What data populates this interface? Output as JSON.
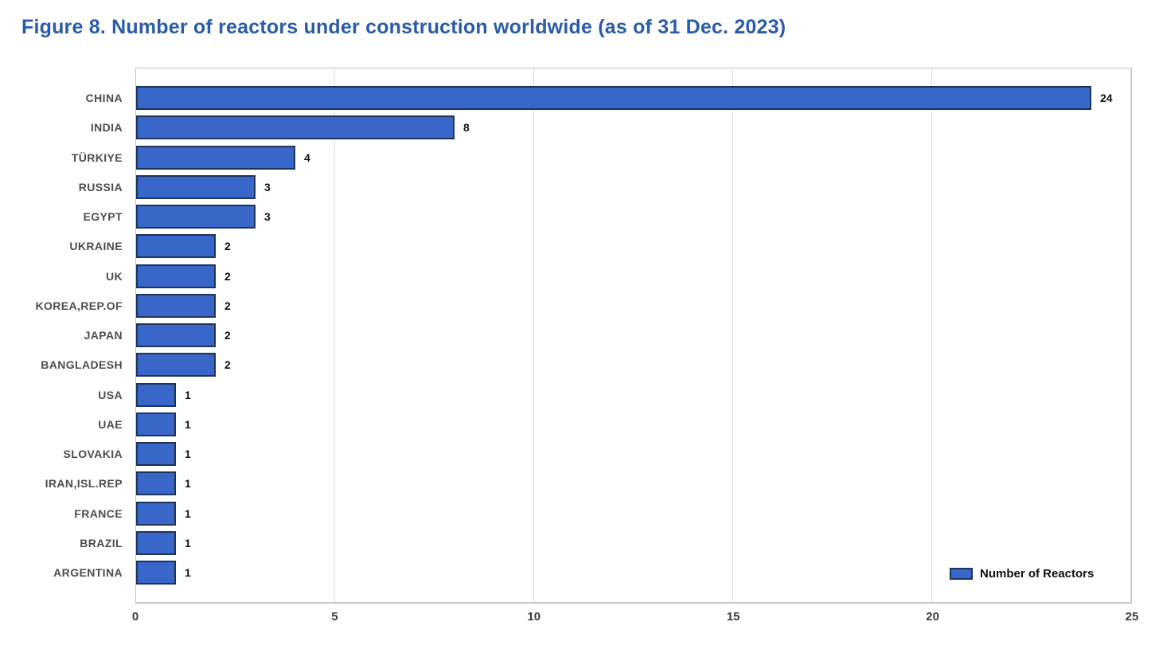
{
  "title": {
    "text": "Figure 8. Number of reactors under construction worldwide (as of 31 Dec. 2023)",
    "color": "#2A5CAA"
  },
  "chart_data": {
    "type": "bar",
    "orientation": "horizontal",
    "title": "Figure 8. Number of reactors under construction worldwide (as of 31 Dec. 2023)",
    "categories": [
      "CHINA",
      "INDIA",
      "TÜRKIYE",
      "RUSSIA",
      "EGYPT",
      "UKRAINE",
      "UK",
      "KOREA,REP.OF",
      "JAPAN",
      "BANGLADESH",
      "USA",
      "UAE",
      "SLOVAKIA",
      "IRAN,ISL.REP",
      "FRANCE",
      "BRAZIL",
      "ARGENTINA"
    ],
    "values": [
      24,
      8,
      4,
      3,
      3,
      2,
      2,
      2,
      2,
      2,
      1,
      1,
      1,
      1,
      1,
      1,
      1
    ],
    "series_name": "Number of Reactors",
    "xlabel": "",
    "ylabel": "",
    "xlim": [
      0,
      25
    ],
    "x_ticks": [
      0,
      5,
      10,
      15,
      20,
      25
    ],
    "grid": "vertical",
    "data_labels": "outside-end",
    "legend_position": "bottom-right"
  },
  "colors": {
    "bar_fill": "#3866C9",
    "bar_border": "#1D3459",
    "value_label": "#111111",
    "category_label": "#4D4D4D",
    "tick_label": "#3C3C3C",
    "gridline": "#DDDDDD",
    "plot_border": "#C6C6C6",
    "legend_text": "#111111"
  },
  "legend": {
    "label": "Number of Reactors"
  }
}
